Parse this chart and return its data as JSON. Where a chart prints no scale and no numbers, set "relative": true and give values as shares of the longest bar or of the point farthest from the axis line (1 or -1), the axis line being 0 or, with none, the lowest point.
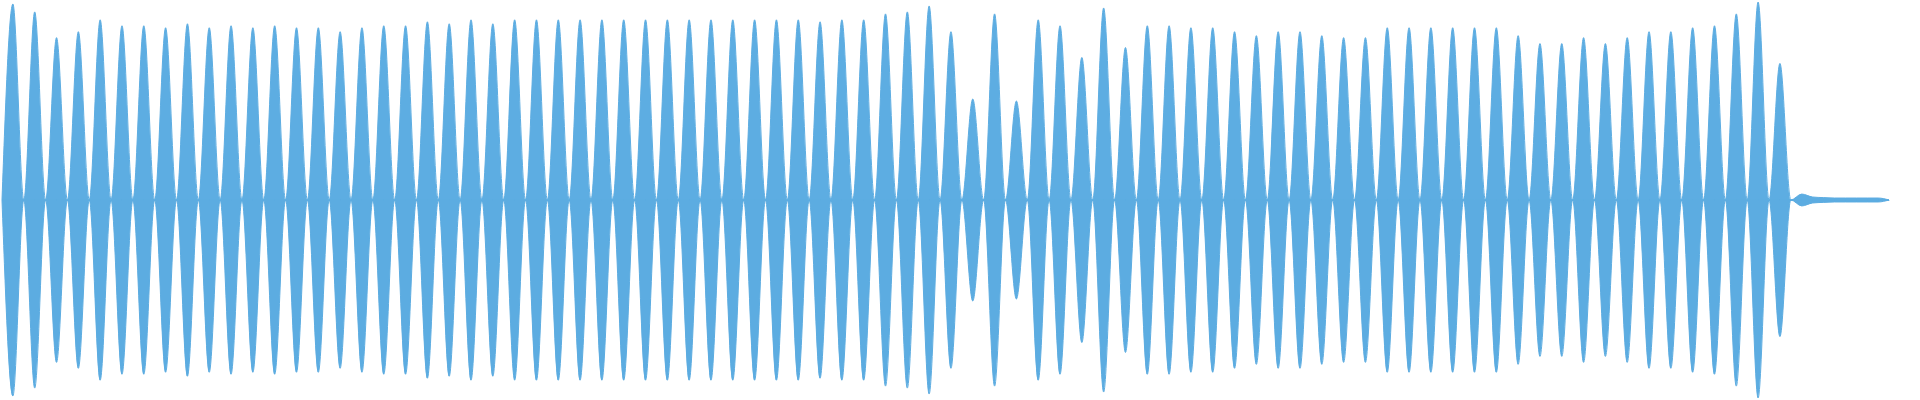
{
  "chart_data": {
    "type": "area",
    "relative": true,
    "categories": [
      null,
      null,
      null,
      null,
      null,
      null,
      null,
      null,
      null,
      null,
      null,
      null,
      null,
      null,
      null,
      null,
      null,
      null,
      null,
      null,
      null,
      null,
      null,
      null,
      null,
      null,
      null,
      null,
      null,
      null,
      null,
      null,
      null,
      null,
      null,
      null,
      null,
      null,
      null,
      null,
      null,
      null,
      null,
      null,
      null,
      null,
      null,
      null,
      null,
      null,
      null,
      null,
      null,
      null,
      null,
      null,
      null,
      null,
      null,
      null,
      null,
      null,
      null,
      null,
      null,
      null,
      null,
      null,
      null,
      null,
      null,
      null,
      null,
      null,
      null,
      null,
      null,
      null,
      null,
      null,
      null,
      null,
      null,
      null,
      null,
      null,
      null,
      null,
      null,
      null,
      null,
      null,
      null,
      null,
      null,
      null,
      null,
      null,
      null,
      null,
      null,
      null,
      null,
      null,
      null,
      null,
      null,
      null,
      null,
      null,
      null,
      null,
      null,
      null,
      null,
      null,
      null,
      null,
      null,
      null,
      null,
      null,
      null,
      null,
      null,
      null,
      null,
      null,
      null,
      null,
      null,
      null,
      null,
      null,
      null,
      null,
      null,
      null,
      null,
      null,
      null,
      null,
      null,
      null,
      null,
      null,
      null,
      null,
      null,
      null,
      null,
      null,
      null,
      null,
      null,
      null,
      null,
      null,
      null,
      null,
      null,
      null,
      null,
      null,
      null,
      null,
      null,
      null,
      null,
      null,
      null,
      null,
      null,
      null
    ],
    "series": [
      {
        "color": "#5dade2",
        "values": [
          0,
          0.99,
          0,
          0.95,
          0,
          0.82,
          0,
          0.85,
          0,
          0.91,
          0,
          0.88,
          0,
          0.88,
          0,
          0.87,
          0,
          0.89,
          0,
          0.87,
          0,
          0.88,
          0,
          0.87,
          0,
          0.88,
          0,
          0.87,
          0,
          0.87,
          0,
          0.85,
          0,
          0.87,
          0,
          0.88,
          0,
          0.88,
          0,
          0.9,
          0,
          0.89,
          0,
          0.91,
          0,
          0.89,
          0,
          0.91,
          0,
          0.91,
          0,
          0.91,
          0,
          0.91,
          0,
          0.91,
          0,
          0.91,
          0,
          0.91,
          0,
          0.91,
          0,
          0.91,
          0,
          0.91,
          0,
          0.91,
          0,
          0.91,
          0,
          0.91,
          0,
          0.91,
          0,
          0.9,
          0,
          0.91,
          0,
          0.91,
          0,
          0.94,
          0,
          0.95,
          0,
          0.98,
          0,
          0.85,
          0,
          0.51,
          0,
          0.94,
          0,
          0.5,
          0,
          0.91,
          0,
          0.88,
          0,
          0.72,
          0,
          0.97,
          0,
          0.77,
          0,
          0.88,
          0,
          0.88,
          0,
          0.87,
          0,
          0.87,
          0,
          0.85,
          0,
          0.83,
          0,
          0.85,
          0,
          0.85,
          0,
          0.83,
          0,
          0.82,
          0,
          0.82,
          0,
          0.87,
          0,
          0.87,
          0,
          0.87,
          0,
          0.87,
          0,
          0.87,
          0,
          0.87,
          0,
          0.83,
          0,
          0.79,
          0,
          0.79,
          0,
          0.82,
          0,
          0.79,
          0,
          0.82,
          0,
          0.85,
          0,
          0.85,
          0,
          0.87,
          0,
          0.88,
          0,
          0.94,
          0,
          1,
          0,
          0.69,
          0,
          0.03,
          0.015,
          0.012,
          0.01,
          0.01,
          0.01,
          0.01,
          0.01,
          0
        ]
      },
      {
        "color": "#5cace1",
        "values": [
          0,
          -0.99,
          0,
          -0.95,
          0,
          -0.82,
          0,
          -0.85,
          0,
          -0.91,
          0,
          -0.88,
          0,
          -0.88,
          0,
          -0.87,
          0,
          -0.89,
          0,
          -0.87,
          0,
          -0.88,
          0,
          -0.87,
          0,
          -0.88,
          0,
          -0.87,
          0,
          -0.87,
          0,
          -0.85,
          0,
          -0.87,
          0,
          -0.88,
          0,
          -0.88,
          0,
          -0.9,
          0,
          -0.89,
          0,
          -0.91,
          0,
          -0.89,
          0,
          -0.91,
          0,
          -0.91,
          0,
          -0.91,
          0,
          -0.91,
          0,
          -0.91,
          0,
          -0.91,
          0,
          -0.91,
          0,
          -0.91,
          0,
          -0.91,
          0,
          -0.91,
          0,
          -0.91,
          0,
          -0.91,
          0,
          -0.91,
          0,
          -0.91,
          0,
          -0.9,
          0,
          -0.91,
          0,
          -0.91,
          0,
          -0.94,
          0,
          -0.95,
          0,
          -0.98,
          0,
          -0.85,
          0,
          -0.51,
          0,
          -0.94,
          0,
          -0.5,
          0,
          -0.91,
          0,
          -0.88,
          0,
          -0.72,
          0,
          -0.97,
          0,
          -0.77,
          0,
          -0.88,
          0,
          -0.88,
          0,
          -0.87,
          0,
          -0.87,
          0,
          -0.85,
          0,
          -0.83,
          0,
          -0.85,
          0,
          -0.85,
          0,
          -0.83,
          0,
          -0.82,
          0,
          -0.82,
          0,
          -0.87,
          0,
          -0.87,
          0,
          -0.87,
          0,
          -0.87,
          0,
          -0.87,
          0,
          -0.87,
          0,
          -0.83,
          0,
          -0.79,
          0,
          -0.79,
          0,
          -0.82,
          0,
          -0.79,
          0,
          -0.82,
          0,
          -0.85,
          0,
          -0.85,
          0,
          -0.87,
          0,
          -0.88,
          0,
          -0.94,
          0,
          -1,
          0,
          -0.69,
          0,
          -0.03,
          -0.015,
          -0.012,
          -0.01,
          -0.01,
          -0.01,
          -0.01,
          -0.01,
          0
        ]
      }
    ]
  }
}
